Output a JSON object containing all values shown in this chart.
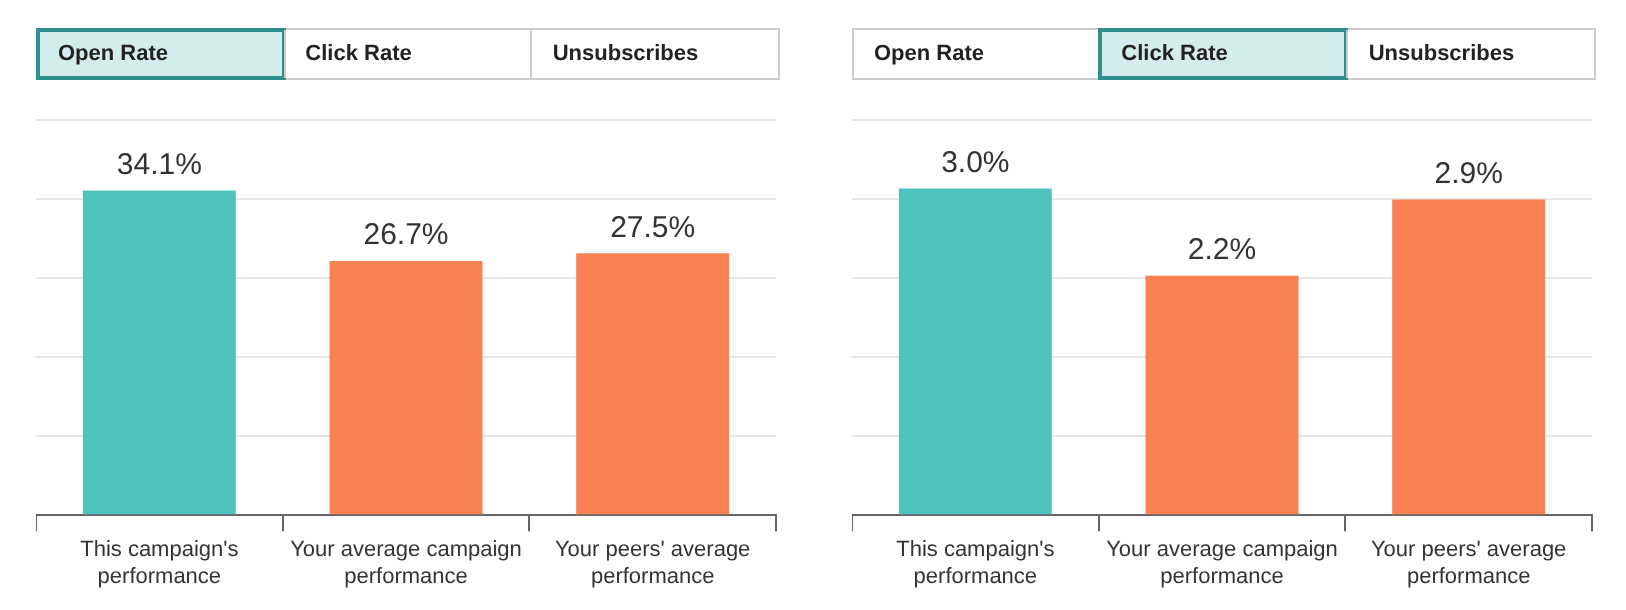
{
  "chart_data": [
    {
      "type": "bar",
      "annotations": [
        "Open Rate",
        "Click Rate",
        "Unsubscribes"
      ],
      "categories": [
        "This campaign's performance",
        "Your average campaign performance",
        "Your peers' average performance"
      ],
      "values": [
        34.1,
        26.7,
        27.5
      ],
      "colors": [
        "#4fc4bf",
        "#f98153",
        "#f98153"
      ],
      "value_labels": [
        "34.1%",
        "26.7%",
        "27.5%"
      ],
      "ylim": [
        0,
        41.5
      ],
      "yticks": [
        {
          "value": 0,
          "label": null
        },
        {
          "value": 8.3,
          "label": null
        },
        {
          "value": 16.6,
          "label": null
        },
        {
          "value": 24.9,
          "label": null
        },
        {
          "value": 33.2,
          "label": null
        },
        {
          "value": 41.5,
          "label": null
        }
      ],
      "grid": "y",
      "tick_labels": "x",
      "legend": false
    },
    {
      "type": "bar",
      "annotations": [
        "Open Rate",
        "Click Rate",
        "Unsubscribes"
      ],
      "categories": [
        "This campaign's performance",
        "Your average campaign performance",
        "Your peers' average performance"
      ],
      "values": [
        3.0,
        2.2,
        2.9
      ],
      "colors": [
        "#4fc4bf",
        "#f98153",
        "#f98153"
      ],
      "value_labels": [
        "3.0%",
        "2.2%",
        "2.9%"
      ],
      "ylim": [
        0,
        3.63
      ],
      "yticks": [
        {
          "value": 0,
          "label": null
        },
        {
          "value": 0.73,
          "label": null
        },
        {
          "value": 1.45,
          "label": null
        },
        {
          "value": 2.18,
          "label": null
        },
        {
          "value": 2.9,
          "label": null
        },
        {
          "value": 3.63,
          "label": null
        }
      ],
      "grid": "y",
      "tick_labels": "x",
      "legend": false
    }
  ]
}
